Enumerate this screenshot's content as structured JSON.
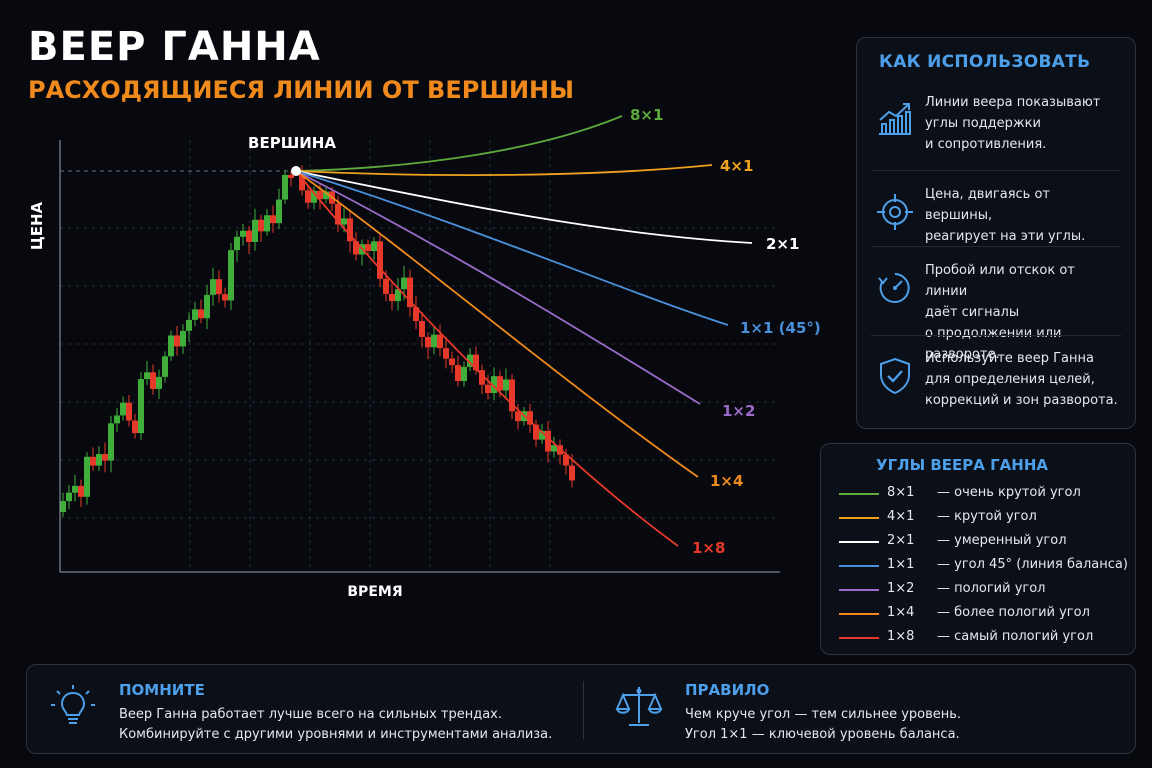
{
  "title": "ВЕЕР ГАННА",
  "subtitle": "РАСХОДЯЩИЕСЯ ЛИНИИ ОТ ВЕРШИНЫ",
  "colors": {
    "bull": "#3fae3a",
    "bear": "#e7392a",
    "accent": "#4c9fe8",
    "orange": "#f08a1c"
  },
  "chart_data": {
    "type": "line",
    "ylabel": "ЦЕНА",
    "xlabel": "ВРЕМЯ",
    "peak_label": "ВЕРШИНА",
    "series": [
      {
        "name": "8×1",
        "color": "#5dab3c"
      },
      {
        "name": "4×1",
        "color": "#f0a21e"
      },
      {
        "name": "2×1",
        "color": "#ffffff"
      },
      {
        "name": "1×1 (45°)",
        "color": "#4a8fd9"
      },
      {
        "name": "1×2",
        "color": "#9b6bc9"
      },
      {
        "name": "1×4",
        "color": "#f08a1c"
      },
      {
        "name": "1×8",
        "color": "#e7392a"
      }
    ]
  },
  "how_to": {
    "title": "КАК ИСПОЛЬЗОВАТЬ",
    "items": [
      {
        "icon": "chart-growth-icon",
        "lines": [
          "Линии веера показывают",
          "углы поддержки",
          "и сопротивления."
        ]
      },
      {
        "icon": "target-icon",
        "lines": [
          "Цена, двигаясь от вершины,",
          "реагирует на эти углы."
        ]
      },
      {
        "icon": "timer-icon",
        "lines": [
          "Пробой или отскок от линии",
          "даёт сигналы",
          "о продолжении или развороте."
        ]
      },
      {
        "icon": "shield-check-icon",
        "lines": [
          "Используйте веер Ганна",
          "для определения целей,",
          "коррекций и зон разворота."
        ]
      }
    ]
  },
  "angles_legend": {
    "title": "УГЛЫ ВЕЕРА ГАННА",
    "rows": [
      {
        "ratio": "8×1",
        "desc": "— очень крутой угол",
        "color": "#5dab3c"
      },
      {
        "ratio": "4×1",
        "desc": "— крутой угол",
        "color": "#f0a21e"
      },
      {
        "ratio": "2×1",
        "desc": "— умеренный угол",
        "color": "#ffffff"
      },
      {
        "ratio": "1×1",
        "desc": "— угол 45° (линия баланса)",
        "color": "#4a8fd9"
      },
      {
        "ratio": "1×2",
        "desc": "— пологий угол",
        "color": "#9b6bc9"
      },
      {
        "ratio": "1×4",
        "desc": "— более пологий угол",
        "color": "#f08a1c"
      },
      {
        "ratio": "1×8",
        "desc": "— самый пологий угол",
        "color": "#e7392a"
      }
    ]
  },
  "remember": {
    "title": "ПОМНИТЕ",
    "icon": "lightbulb-icon",
    "lines": [
      "Веер Ганна работает лучше всего на сильных трендах.",
      "Комбинируйте с другими уровнями и инструментами анализа."
    ]
  },
  "rule": {
    "title": "ПРАВИЛО",
    "icon": "scales-icon",
    "lines": [
      "Чем круче угол — тем сильнее уровень.",
      "Угол 1×1 — ключевой уровень баланса."
    ]
  }
}
